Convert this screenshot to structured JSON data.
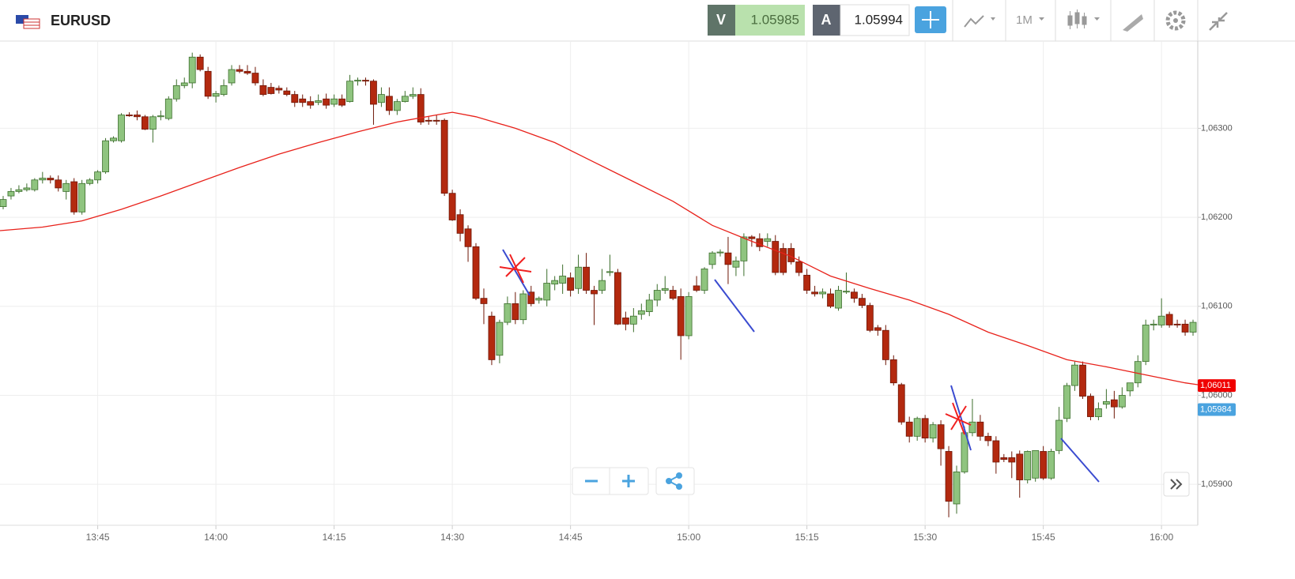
{
  "header": {
    "symbol": "EURUSD",
    "sell_label": "V",
    "sell_price": 1.05985,
    "buy_label": "A",
    "buy_price": 1.05994,
    "timeframe": "1M"
  },
  "chart_data": {
    "type": "candlestick",
    "xlim": [
      812.6,
      964.6
    ],
    "xticks": [
      {
        "value": 825,
        "label": "13:45"
      },
      {
        "value": 840,
        "label": "14:00"
      },
      {
        "value": 855,
        "label": "14:15"
      },
      {
        "value": 870,
        "label": "14:30"
      },
      {
        "value": 885,
        "label": "14:45"
      },
      {
        "value": 900,
        "label": "15:00"
      },
      {
        "value": 915,
        "label": "15:15"
      },
      {
        "value": 930,
        "label": "15:30"
      },
      {
        "value": 945,
        "label": "15:45"
      },
      {
        "value": 960,
        "label": "16:00"
      }
    ],
    "ylim": [
      1.05854,
      1.06398
    ],
    "yticks": [
      {
        "value": 1.059,
        "label": "1,05900"
      },
      {
        "value": 1.06,
        "label": "1,06000"
      },
      {
        "value": 1.061,
        "label": "1,06100"
      },
      {
        "value": 1.062,
        "label": "1,06200"
      },
      {
        "value": 1.063,
        "label": "1,06300"
      }
    ],
    "grid": true,
    "colors": {
      "up": "#8fc47f",
      "up_edge": "#3c6e2c",
      "down": "#b3290f",
      "down_edge": "#6e1606"
    },
    "candles": {
      "x": [
        813,
        814,
        815,
        816,
        817,
        818,
        819,
        820,
        821,
        822,
        823,
        824,
        825,
        826,
        827,
        828,
        829,
        830,
        831,
        832,
        833,
        834,
        835,
        836,
        837,
        838,
        839,
        840,
        841,
        842,
        843,
        844,
        845,
        846,
        847,
        848,
        849,
        850,
        851,
        852,
        853,
        854,
        855,
        856,
        857,
        858,
        859,
        860,
        861,
        862,
        863,
        864,
        865,
        866,
        867,
        868,
        869,
        870,
        871,
        872,
        873,
        874,
        875,
        876,
        877,
        878,
        879,
        880,
        881,
        882,
        883,
        884,
        885,
        886,
        887,
        888,
        889,
        890,
        891,
        892,
        893,
        894,
        895,
        896,
        897,
        898,
        899,
        900,
        901,
        902,
        903,
        904,
        905,
        906,
        907,
        908,
        909,
        910,
        911,
        912,
        913,
        914,
        915,
        916,
        917,
        918,
        919,
        920,
        921,
        922,
        923,
        924,
        925,
        926,
        927,
        928,
        929,
        930,
        931,
        932,
        933,
        934,
        935,
        936,
        937,
        938,
        939,
        940,
        941,
        942,
        943,
        944,
        945,
        946,
        947,
        948,
        949,
        950,
        951,
        952,
        953,
        954,
        955,
        956,
        957,
        958,
        959,
        960,
        961,
        962,
        963,
        964
      ],
      "ohlc": [
        [
          1.06212,
          1.06224,
          1.06209,
          1.0622
        ],
        [
          1.06224,
          1.06233,
          1.0622,
          1.06229
        ],
        [
          1.06229,
          1.06236,
          1.06227,
          1.06231
        ],
        [
          1.06231,
          1.06238,
          1.06229,
          1.06233
        ],
        [
          1.06231,
          1.06244,
          1.06229,
          1.06242
        ],
        [
          1.06242,
          1.06251,
          1.06238,
          1.06244
        ],
        [
          1.06244,
          1.06247,
          1.06238,
          1.06242
        ],
        [
          1.06242,
          1.06247,
          1.06229,
          1.06233
        ],
        [
          1.06229,
          1.06242,
          1.0622,
          1.06238
        ],
        [
          1.0624,
          1.06244,
          1.06203,
          1.06206
        ],
        [
          1.06206,
          1.06242,
          1.06203,
          1.06238
        ],
        [
          1.06238,
          1.06244,
          1.06236,
          1.06242
        ],
        [
          1.06242,
          1.06253,
          1.06238,
          1.06251
        ],
        [
          1.06251,
          1.06289,
          1.06249,
          1.06286
        ],
        [
          1.06286,
          1.06291,
          1.06284,
          1.06289
        ],
        [
          1.06286,
          1.06317,
          1.06284,
          1.06315
        ],
        [
          1.06315,
          1.06318,
          1.06313,
          1.06314
        ],
        [
          1.06315,
          1.0632,
          1.06309,
          1.06313
        ],
        [
          1.06313,
          1.06315,
          1.06298,
          1.06299
        ],
        [
          1.06299,
          1.06315,
          1.06284,
          1.06313
        ],
        [
          1.06313,
          1.0632,
          1.06309,
          1.06314
        ],
        [
          1.06311,
          1.06336,
          1.06309,
          1.06333
        ],
        [
          1.06333,
          1.06355,
          1.0633,
          1.06348
        ],
        [
          1.06348,
          1.06357,
          1.06345,
          1.06351
        ],
        [
          1.06351,
          1.06385,
          1.06345,
          1.0638
        ],
        [
          1.0638,
          1.06383,
          1.06364,
          1.06366
        ],
        [
          1.06364,
          1.06369,
          1.06333,
          1.06336
        ],
        [
          1.06336,
          1.06342,
          1.06329,
          1.06339
        ],
        [
          1.06338,
          1.06355,
          1.06336,
          1.06348
        ],
        [
          1.06351,
          1.06371,
          1.06348,
          1.06366
        ],
        [
          1.06366,
          1.06371,
          1.06362,
          1.06364
        ],
        [
          1.06364,
          1.06371,
          1.0636,
          1.06362
        ],
        [
          1.06362,
          1.06369,
          1.06348,
          1.06351
        ],
        [
          1.06348,
          1.06355,
          1.06336,
          1.06338
        ],
        [
          1.06346,
          1.06351,
          1.06338,
          1.06339
        ],
        [
          1.06345,
          1.06348,
          1.06339,
          1.06343
        ],
        [
          1.06342,
          1.06346,
          1.06336,
          1.06338
        ],
        [
          1.06338,
          1.06342,
          1.06324,
          1.06329
        ],
        [
          1.06333,
          1.06338,
          1.06324,
          1.06329
        ],
        [
          1.0633,
          1.06336,
          1.06322,
          1.06326
        ],
        [
          1.06329,
          1.06338,
          1.06326,
          1.06331
        ],
        [
          1.06333,
          1.06339,
          1.06322,
          1.06326
        ],
        [
          1.06327,
          1.06338,
          1.06324,
          1.06333
        ],
        [
          1.06333,
          1.06338,
          1.06324,
          1.06326
        ],
        [
          1.0633,
          1.0636,
          1.06329,
          1.06353
        ],
        [
          1.06353,
          1.06357,
          1.06348,
          1.06354
        ],
        [
          1.06354,
          1.06357,
          1.06348,
          1.06353
        ],
        [
          1.06353,
          1.06355,
          1.06304,
          1.06327
        ],
        [
          1.06329,
          1.06346,
          1.06324,
          1.06338
        ],
        [
          1.06336,
          1.06346,
          1.06315,
          1.0632
        ],
        [
          1.0632,
          1.06333,
          1.06315,
          1.0633
        ],
        [
          1.0633,
          1.06342,
          1.06329,
          1.06336
        ],
        [
          1.06336,
          1.06346,
          1.06333,
          1.06338
        ],
        [
          1.06338,
          1.06345,
          1.06304,
          1.06307
        ],
        [
          1.06309,
          1.06313,
          1.06304,
          1.06308
        ],
        [
          1.06309,
          1.06315,
          1.06304,
          1.06308
        ],
        [
          1.06309,
          1.06311,
          1.06224,
          1.06227
        ],
        [
          1.06227,
          1.06231,
          1.06196,
          1.06197
        ],
        [
          1.06203,
          1.06209,
          1.06173,
          1.06182
        ],
        [
          1.06187,
          1.06191,
          1.0615,
          1.06167
        ],
        [
          1.06167,
          1.06171,
          1.06107,
          1.06109
        ],
        [
          1.06109,
          1.0612,
          1.0608,
          1.06103
        ],
        [
          1.06089,
          1.06094,
          1.06034,
          1.0604
        ],
        [
          1.06045,
          1.06085,
          1.06036,
          1.06082
        ],
        [
          1.06082,
          1.06111,
          1.06079,
          1.06103
        ],
        [
          1.06103,
          1.06116,
          1.0608,
          1.06085
        ],
        [
          1.06085,
          1.06118,
          1.0608,
          1.06114
        ],
        [
          1.06116,
          1.06123,
          1.061,
          1.06103
        ],
        [
          1.06107,
          1.06111,
          1.06103,
          1.06109
        ],
        [
          1.06107,
          1.06142,
          1.061,
          1.06126
        ],
        [
          1.06125,
          1.06134,
          1.06118,
          1.06129
        ],
        [
          1.06126,
          1.06147,
          1.06114,
          1.06134
        ],
        [
          1.06132,
          1.06138,
          1.06111,
          1.06118
        ],
        [
          1.0612,
          1.06158,
          1.06114,
          1.06144
        ],
        [
          1.06144,
          1.0616,
          1.06114,
          1.06118
        ],
        [
          1.06118,
          1.06123,
          1.06079,
          1.06114
        ],
        [
          1.06118,
          1.06142,
          1.06114,
          1.06129
        ],
        [
          1.06138,
          1.06158,
          1.06134,
          1.06139
        ],
        [
          1.06138,
          1.06142,
          1.06079,
          1.0608
        ],
        [
          1.06087,
          1.06094,
          1.06073,
          1.0608
        ],
        [
          1.0608,
          1.06098,
          1.06071,
          1.06089
        ],
        [
          1.06091,
          1.06103,
          1.06085,
          1.06095
        ],
        [
          1.06094,
          1.06114,
          1.06089,
          1.06107
        ],
        [
          1.06107,
          1.06125,
          1.061,
          1.06118
        ],
        [
          1.06118,
          1.06134,
          1.06114,
          1.0612
        ],
        [
          1.06118,
          1.06123,
          1.06107,
          1.06109
        ],
        [
          1.06111,
          1.0612,
          1.0604,
          1.06067
        ],
        [
          1.06067,
          1.06116,
          1.06063,
          1.06111
        ],
        [
          1.06123,
          1.06134,
          1.06116,
          1.06118
        ],
        [
          1.06118,
          1.06144,
          1.06114,
          1.06142
        ],
        [
          1.06147,
          1.06162,
          1.06142,
          1.0616
        ],
        [
          1.0616,
          1.06164,
          1.06156,
          1.06161
        ],
        [
          1.0616,
          1.06178,
          1.06125,
          1.06147
        ],
        [
          1.06144,
          1.06156,
          1.06134,
          1.06151
        ],
        [
          1.06151,
          1.06182,
          1.06134,
          1.06178
        ],
        [
          1.06178,
          1.0618,
          1.06167,
          1.06176
        ],
        [
          1.06176,
          1.06182,
          1.06162,
          1.06167
        ],
        [
          1.06173,
          1.06182,
          1.06167,
          1.06176
        ],
        [
          1.06173,
          1.0618,
          1.06135,
          1.06138
        ],
        [
          1.06165,
          1.06171,
          1.06135,
          1.06138
        ],
        [
          1.06165,
          1.06171,
          1.06147,
          1.0615
        ],
        [
          1.0615,
          1.06156,
          1.06134,
          1.06138
        ],
        [
          1.06135,
          1.06142,
          1.06114,
          1.06118
        ],
        [
          1.06116,
          1.06123,
          1.06111,
          1.06114
        ],
        [
          1.06114,
          1.0612,
          1.06109,
          1.06116
        ],
        [
          1.06114,
          1.0612,
          1.06098,
          1.061
        ],
        [
          1.06098,
          1.06123,
          1.06095,
          1.06118
        ],
        [
          1.06116,
          1.06138,
          1.06114,
          1.06117
        ],
        [
          1.06116,
          1.0612,
          1.06104,
          1.06109
        ],
        [
          1.06109,
          1.06114,
          1.06098,
          1.06101
        ],
        [
          1.06101,
          1.06104,
          1.06071,
          1.06073
        ],
        [
          1.06076,
          1.06079,
          1.06067,
          1.06073
        ],
        [
          1.06073,
          1.06079,
          1.06034,
          1.0604
        ],
        [
          1.0604,
          1.06045,
          1.06011,
          1.06014
        ],
        [
          1.06012,
          1.06014,
          1.05967,
          1.0597
        ],
        [
          1.0597,
          1.05976,
          1.05947,
          1.05954
        ],
        [
          1.05954,
          1.05976,
          1.05949,
          1.05974
        ],
        [
          1.05974,
          1.05978,
          1.05947,
          1.05952
        ],
        [
          1.05952,
          1.0597,
          1.05947,
          1.05967
        ],
        [
          1.05967,
          1.05972,
          1.05921,
          1.0594
        ],
        [
          1.05937,
          1.05943,
          1.05863,
          1.05881
        ],
        [
          1.05878,
          1.05921,
          1.05867,
          1.05914
        ],
        [
          1.05914,
          1.05965,
          1.05912,
          1.05958
        ],
        [
          1.05958,
          1.05996,
          1.05954,
          1.0597
        ],
        [
          1.0597,
          1.05978,
          1.05949,
          1.05954
        ],
        [
          1.05954,
          1.05958,
          1.05943,
          1.05949
        ],
        [
          1.05949,
          1.05954,
          1.05912,
          1.05925
        ],
        [
          1.0593,
          1.05934,
          1.05925,
          1.05928
        ],
        [
          1.0593,
          1.05937,
          1.05907,
          1.05925
        ],
        [
          1.05934,
          1.05938,
          1.05885,
          1.05905
        ],
        [
          1.05905,
          1.05938,
          1.05901,
          1.05937
        ],
        [
          1.05907,
          1.05938,
          1.05903,
          1.05938
        ],
        [
          1.05937,
          1.05943,
          1.05905,
          1.05907
        ],
        [
          1.05907,
          1.0594,
          1.05905,
          1.05937
        ],
        [
          1.05938,
          1.05987,
          1.05934,
          1.05972
        ],
        [
          1.05974,
          1.06014,
          1.0597,
          1.06011
        ],
        [
          1.06011,
          1.06038,
          1.06005,
          1.06034
        ],
        [
          1.06034,
          1.06038,
          1.05996,
          1.05999
        ],
        [
          1.05999,
          1.06002,
          1.05972,
          1.05976
        ],
        [
          1.05976,
          1.05992,
          1.05972,
          1.05985
        ],
        [
          1.0599,
          1.06007,
          1.05985,
          1.05993
        ],
        [
          1.05995,
          1.06005,
          1.05974,
          1.05987
        ],
        [
          1.05987,
          1.06009,
          1.05985,
          1.06
        ],
        [
          1.06005,
          1.06014,
          1.05999,
          1.06014
        ],
        [
          1.06014,
          1.06045,
          1.06009,
          1.06038
        ],
        [
          1.06038,
          1.06085,
          1.06034,
          1.06079
        ],
        [
          1.06079,
          1.06085,
          1.06073,
          1.0608
        ],
        [
          1.06079,
          1.06109,
          1.06076,
          1.06089
        ],
        [
          1.06091,
          1.06094,
          1.06076,
          1.06079
        ],
        [
          1.0608,
          1.06085,
          1.06076,
          1.06079
        ],
        [
          1.0608,
          1.06085,
          1.06067,
          1.06071
        ],
        [
          1.06071,
          1.06085,
          1.06067,
          1.06082
        ]
      ]
    },
    "ma": {
      "color": "#e8211a",
      "x": [
        812.6,
        818,
        823,
        828,
        833,
        838,
        843,
        848,
        853,
        858,
        863,
        868,
        870,
        873,
        878,
        883,
        888,
        893,
        898,
        903,
        908,
        913,
        918,
        923,
        928,
        933,
        938,
        943,
        948,
        953,
        958,
        963,
        964.6
      ],
      "values": [
        1.06185,
        1.06189,
        1.06196,
        1.06209,
        1.06224,
        1.0624,
        1.06256,
        1.06271,
        1.06284,
        1.06296,
        1.06307,
        1.06315,
        1.06318,
        1.06313,
        1.063,
        1.06284,
        1.06262,
        1.0624,
        1.06218,
        1.06191,
        1.06173,
        1.06156,
        1.06134,
        1.0612,
        1.06107,
        1.06091,
        1.06071,
        1.06056,
        1.0604,
        1.06032,
        1.06023,
        1.06014,
        1.06012
      ]
    },
    "price_tags": [
      {
        "value": 1.06011,
        "label": "1,06011",
        "color": "#f00000"
      },
      {
        "value": 1.05984,
        "label": "1,05984",
        "color": "#4aa3df"
      }
    ]
  }
}
